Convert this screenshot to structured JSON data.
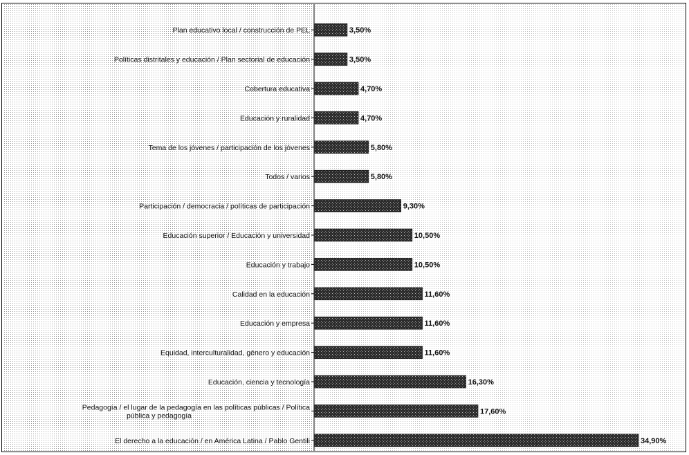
{
  "chart_data": {
    "type": "bar",
    "orientation": "horizontal",
    "title": "",
    "xlabel": "",
    "ylabel": "",
    "value_suffix": "%",
    "xlim": [
      0,
      36
    ],
    "grid": false,
    "legend": "none",
    "colors": {
      "bar": "#2b2b2b",
      "label": "#111111",
      "axis": "#000000",
      "dots": "#9a9a9a"
    },
    "categories": [
      "Plan educativo local / construcción de PEL",
      "Políticas distritales y educación / Plan sectorial de educación",
      "Cobertura educativa",
      "Educación y ruralidad",
      "Tema de los jóvenes / participación de los jóvenes",
      "Todos / varios",
      "Participación / democracia / políticas de participación",
      "Educación superior / Educación y universidad",
      "Educación y trabajo",
      "Calidad en la educación",
      "Educación y empresa",
      "Equidad, interculturalidad, género y educación",
      "Educación, ciencia y tecnología",
      "Pedagogía / el lugar de la pedagogía en las políticas públicas / Política pública y pedagogía",
      "El derecho a la educación / en América Latina / Pablo Gentili"
    ],
    "values": [
      3.5,
      3.5,
      4.7,
      4.7,
      5.8,
      5.8,
      9.3,
      10.5,
      10.5,
      11.6,
      11.6,
      11.6,
      16.3,
      17.6,
      34.9
    ],
    "value_labels": [
      "3,50%",
      "3,50%",
      "4,70%",
      "4,70%",
      "5,80%",
      "5,80%",
      "9,30%",
      "10,50%",
      "10,50%",
      "11,60%",
      "11,60%",
      "11,60%",
      "16,30%",
      "17,60%",
      "34,90%"
    ]
  }
}
